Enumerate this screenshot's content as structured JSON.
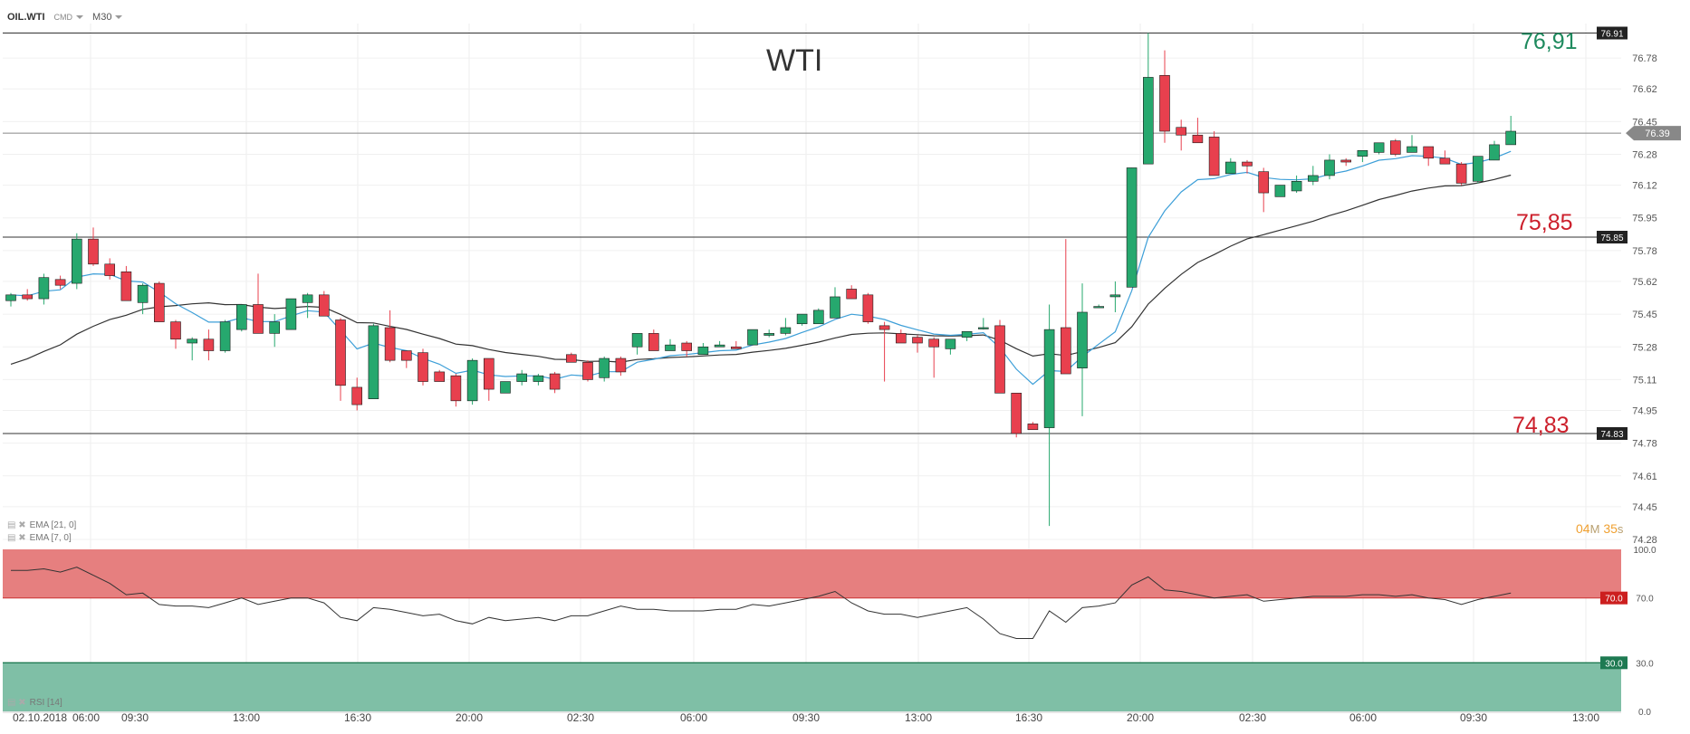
{
  "toolbar": {
    "symbol": "OIL.WTI",
    "instrument_type": "CMD",
    "timeframe": "M30"
  },
  "chart_title": "WTI",
  "annotations": {
    "resistance_high": {
      "text": "76,91",
      "color": "#1e8a5e"
    },
    "resistance_mid": {
      "text": "75,85",
      "color": "#cc1f2b"
    },
    "support": {
      "text": "74,83",
      "color": "#cc1f2b"
    }
  },
  "timer": {
    "minutes": "04",
    "min_unit": "M",
    "seconds": "35",
    "sec_unit": "s"
  },
  "indicators": {
    "ema_long": "EMA  [21, 0]",
    "ema_short": "EMA  [7, 0]",
    "rsi": "RSI  [14]"
  },
  "colors": {
    "bull": "#26a86e",
    "bear": "#e8404e",
    "ema_short": "#3d9fd8",
    "ema_long": "#333333",
    "overbought_zone": "#e67f7f",
    "oversold_zone": "#7fbfa6"
  },
  "chart_data": {
    "type": "candlestick",
    "price_axis": {
      "ticks": [
        "76.78",
        "76.62",
        "76.45",
        "76.28",
        "76.12",
        "75.95",
        "75.78",
        "75.62",
        "75.45",
        "75.28",
        "75.11",
        "74.95",
        "74.78",
        "74.61",
        "74.45",
        "74.28"
      ],
      "range": [
        74.28,
        76.95
      ]
    },
    "current_price": "76.39",
    "horizontal_levels": [
      {
        "value": 76.91,
        "label": "76.91"
      },
      {
        "value": 75.85,
        "label": "75.85"
      },
      {
        "value": 74.83,
        "label": "74.83"
      }
    ],
    "time_axis": [
      "02.10.2018",
      "06:00",
      "09:30",
      "13:00",
      "16:30",
      "20:00",
      "02:30",
      "06:00",
      "09:30",
      "13:00",
      "16:30",
      "20:00",
      "02:30",
      "06:00",
      "09:30",
      "13:00"
    ],
    "candles": [
      [
        75.52,
        75.56,
        75.49,
        75.55
      ],
      [
        75.55,
        75.58,
        75.52,
        75.53
      ],
      [
        75.53,
        75.66,
        75.5,
        75.64
      ],
      [
        75.63,
        75.65,
        75.58,
        75.6
      ],
      [
        75.61,
        75.87,
        75.58,
        75.84
      ],
      [
        75.84,
        75.9,
        75.7,
        75.71
      ],
      [
        75.71,
        75.74,
        75.63,
        75.65
      ],
      [
        75.67,
        75.7,
        75.52,
        75.52
      ],
      [
        75.51,
        75.61,
        75.45,
        75.6
      ],
      [
        75.61,
        75.62,
        75.41,
        75.41
      ],
      [
        75.41,
        75.42,
        75.27,
        75.32
      ],
      [
        75.3,
        75.33,
        75.21,
        75.32
      ],
      [
        75.32,
        75.37,
        75.21,
        75.26
      ],
      [
        75.26,
        75.42,
        75.25,
        75.41
      ],
      [
        75.37,
        75.5,
        75.36,
        75.5
      ],
      [
        75.5,
        75.66,
        75.35,
        75.35
      ],
      [
        75.35,
        75.45,
        75.28,
        75.41
      ],
      [
        75.37,
        75.53,
        75.37,
        75.53
      ],
      [
        75.51,
        75.56,
        75.43,
        75.55
      ],
      [
        75.55,
        75.57,
        75.44,
        75.44
      ],
      [
        75.42,
        75.43,
        75.0,
        75.08
      ],
      [
        75.07,
        75.12,
        74.95,
        74.98
      ],
      [
        75.01,
        75.4,
        75.01,
        75.39
      ],
      [
        75.38,
        75.47,
        75.2,
        75.21
      ],
      [
        75.26,
        75.26,
        75.17,
        75.21
      ],
      [
        75.25,
        75.27,
        75.08,
        75.1
      ],
      [
        75.15,
        75.16,
        75.1,
        75.1
      ],
      [
        75.13,
        75.14,
        74.97,
        75.0
      ],
      [
        75.0,
        75.22,
        74.98,
        75.21
      ],
      [
        75.22,
        75.22,
        75.0,
        75.06
      ],
      [
        75.04,
        75.1,
        75.04,
        75.1
      ],
      [
        75.1,
        75.16,
        75.08,
        75.14
      ],
      [
        75.1,
        75.14,
        75.08,
        75.13
      ],
      [
        75.14,
        75.15,
        75.04,
        75.06
      ],
      [
        75.24,
        75.25,
        75.2,
        75.2
      ],
      [
        75.2,
        75.21,
        75.1,
        75.11
      ],
      [
        75.12,
        75.23,
        75.1,
        75.22
      ],
      [
        75.22,
        75.23,
        75.13,
        75.15
      ],
      [
        75.28,
        75.35,
        75.24,
        75.35
      ],
      [
        75.35,
        75.37,
        75.26,
        75.26
      ],
      [
        75.26,
        75.32,
        75.26,
        75.29
      ],
      [
        75.3,
        75.31,
        75.23,
        75.26
      ],
      [
        75.24,
        75.3,
        75.24,
        75.28
      ],
      [
        75.28,
        75.31,
        75.28,
        75.29
      ],
      [
        75.28,
        75.31,
        75.27,
        75.27
      ],
      [
        75.29,
        75.37,
        75.29,
        75.37
      ],
      [
        75.34,
        75.37,
        75.33,
        75.35
      ],
      [
        75.35,
        75.43,
        75.34,
        75.38
      ],
      [
        75.4,
        75.45,
        75.39,
        75.45
      ],
      [
        75.4,
        75.48,
        75.4,
        75.47
      ],
      [
        75.43,
        75.59,
        75.43,
        75.54
      ],
      [
        75.58,
        75.6,
        75.53,
        75.53
      ],
      [
        75.55,
        75.56,
        75.4,
        75.41
      ],
      [
        75.39,
        75.41,
        75.1,
        75.37
      ],
      [
        75.35,
        75.37,
        75.3,
        75.3
      ],
      [
        75.33,
        75.34,
        75.25,
        75.3
      ],
      [
        75.32,
        75.33,
        75.12,
        75.28
      ],
      [
        75.27,
        75.32,
        75.24,
        75.32
      ],
      [
        75.33,
        75.36,
        75.31,
        75.36
      ],
      [
        75.38,
        75.43,
        75.37,
        75.38
      ],
      [
        75.39,
        75.42,
        75.04,
        75.04
      ],
      [
        75.04,
        75.04,
        74.81,
        74.83
      ],
      [
        74.88,
        74.89,
        74.85,
        74.85
      ],
      [
        74.86,
        75.5,
        74.35,
        75.37
      ],
      [
        75.38,
        75.84,
        75.14,
        75.14
      ],
      [
        75.17,
        75.61,
        74.92,
        75.46
      ],
      [
        75.49,
        75.5,
        75.49,
        75.49
      ],
      [
        75.54,
        75.62,
        75.46,
        75.55
      ],
      [
        75.59,
        76.21,
        75.59,
        76.21
      ],
      [
        76.23,
        76.91,
        76.23,
        76.68
      ],
      [
        76.69,
        76.82,
        76.34,
        76.4
      ],
      [
        76.42,
        76.46,
        76.3,
        76.38
      ],
      [
        76.38,
        76.47,
        76.34,
        76.34
      ],
      [
        76.37,
        76.4,
        76.17,
        76.17
      ],
      [
        76.18,
        76.26,
        76.18,
        76.24
      ],
      [
        76.24,
        76.25,
        76.18,
        76.22
      ],
      [
        76.19,
        76.21,
        75.98,
        76.08
      ],
      [
        76.06,
        76.12,
        76.06,
        76.12
      ],
      [
        76.09,
        76.17,
        76.08,
        76.14
      ],
      [
        76.14,
        76.22,
        76.12,
        76.17
      ],
      [
        76.17,
        76.28,
        76.15,
        76.25
      ],
      [
        76.25,
        76.26,
        76.22,
        76.24
      ],
      [
        76.27,
        76.3,
        76.24,
        76.3
      ],
      [
        76.29,
        76.34,
        76.28,
        76.34
      ],
      [
        76.35,
        76.36,
        76.27,
        76.28
      ],
      [
        76.29,
        76.38,
        76.29,
        76.32
      ],
      [
        76.32,
        76.32,
        76.22,
        76.26
      ],
      [
        76.26,
        76.3,
        76.23,
        76.23
      ],
      [
        76.23,
        76.24,
        76.12,
        76.13
      ],
      [
        76.14,
        76.27,
        76.13,
        76.27
      ],
      [
        76.25,
        76.35,
        76.25,
        76.33
      ],
      [
        76.33,
        76.48,
        76.33,
        76.4
      ]
    ],
    "rsi_axis": {
      "ticks": [
        "100.0",
        "70.0",
        "30.0",
        "0.0"
      ],
      "overbought": "70.0",
      "oversold": "30.0"
    },
    "rsi": [
      87,
      87,
      88,
      86,
      89,
      84,
      79,
      72,
      73,
      66,
      65,
      65,
      64,
      67,
      70,
      66,
      68,
      70,
      70,
      67,
      58,
      56,
      64,
      63,
      61,
      59,
      60,
      56,
      54,
      58,
      56,
      57,
      58,
      56,
      59,
      59,
      62,
      65,
      63,
      63,
      62,
      62,
      62,
      63,
      63,
      66,
      65,
      67,
      69,
      71,
      74,
      67,
      62,
      60,
      60,
      58,
      60,
      62,
      64,
      57,
      48,
      45,
      45,
      62,
      55,
      64,
      65,
      67,
      78,
      83,
      75,
      74,
      72,
      70,
      71,
      72,
      68,
      69,
      70,
      71,
      71,
      71,
      72,
      72,
      71,
      72,
      70,
      69,
      66,
      69,
      71,
      73
    ]
  }
}
